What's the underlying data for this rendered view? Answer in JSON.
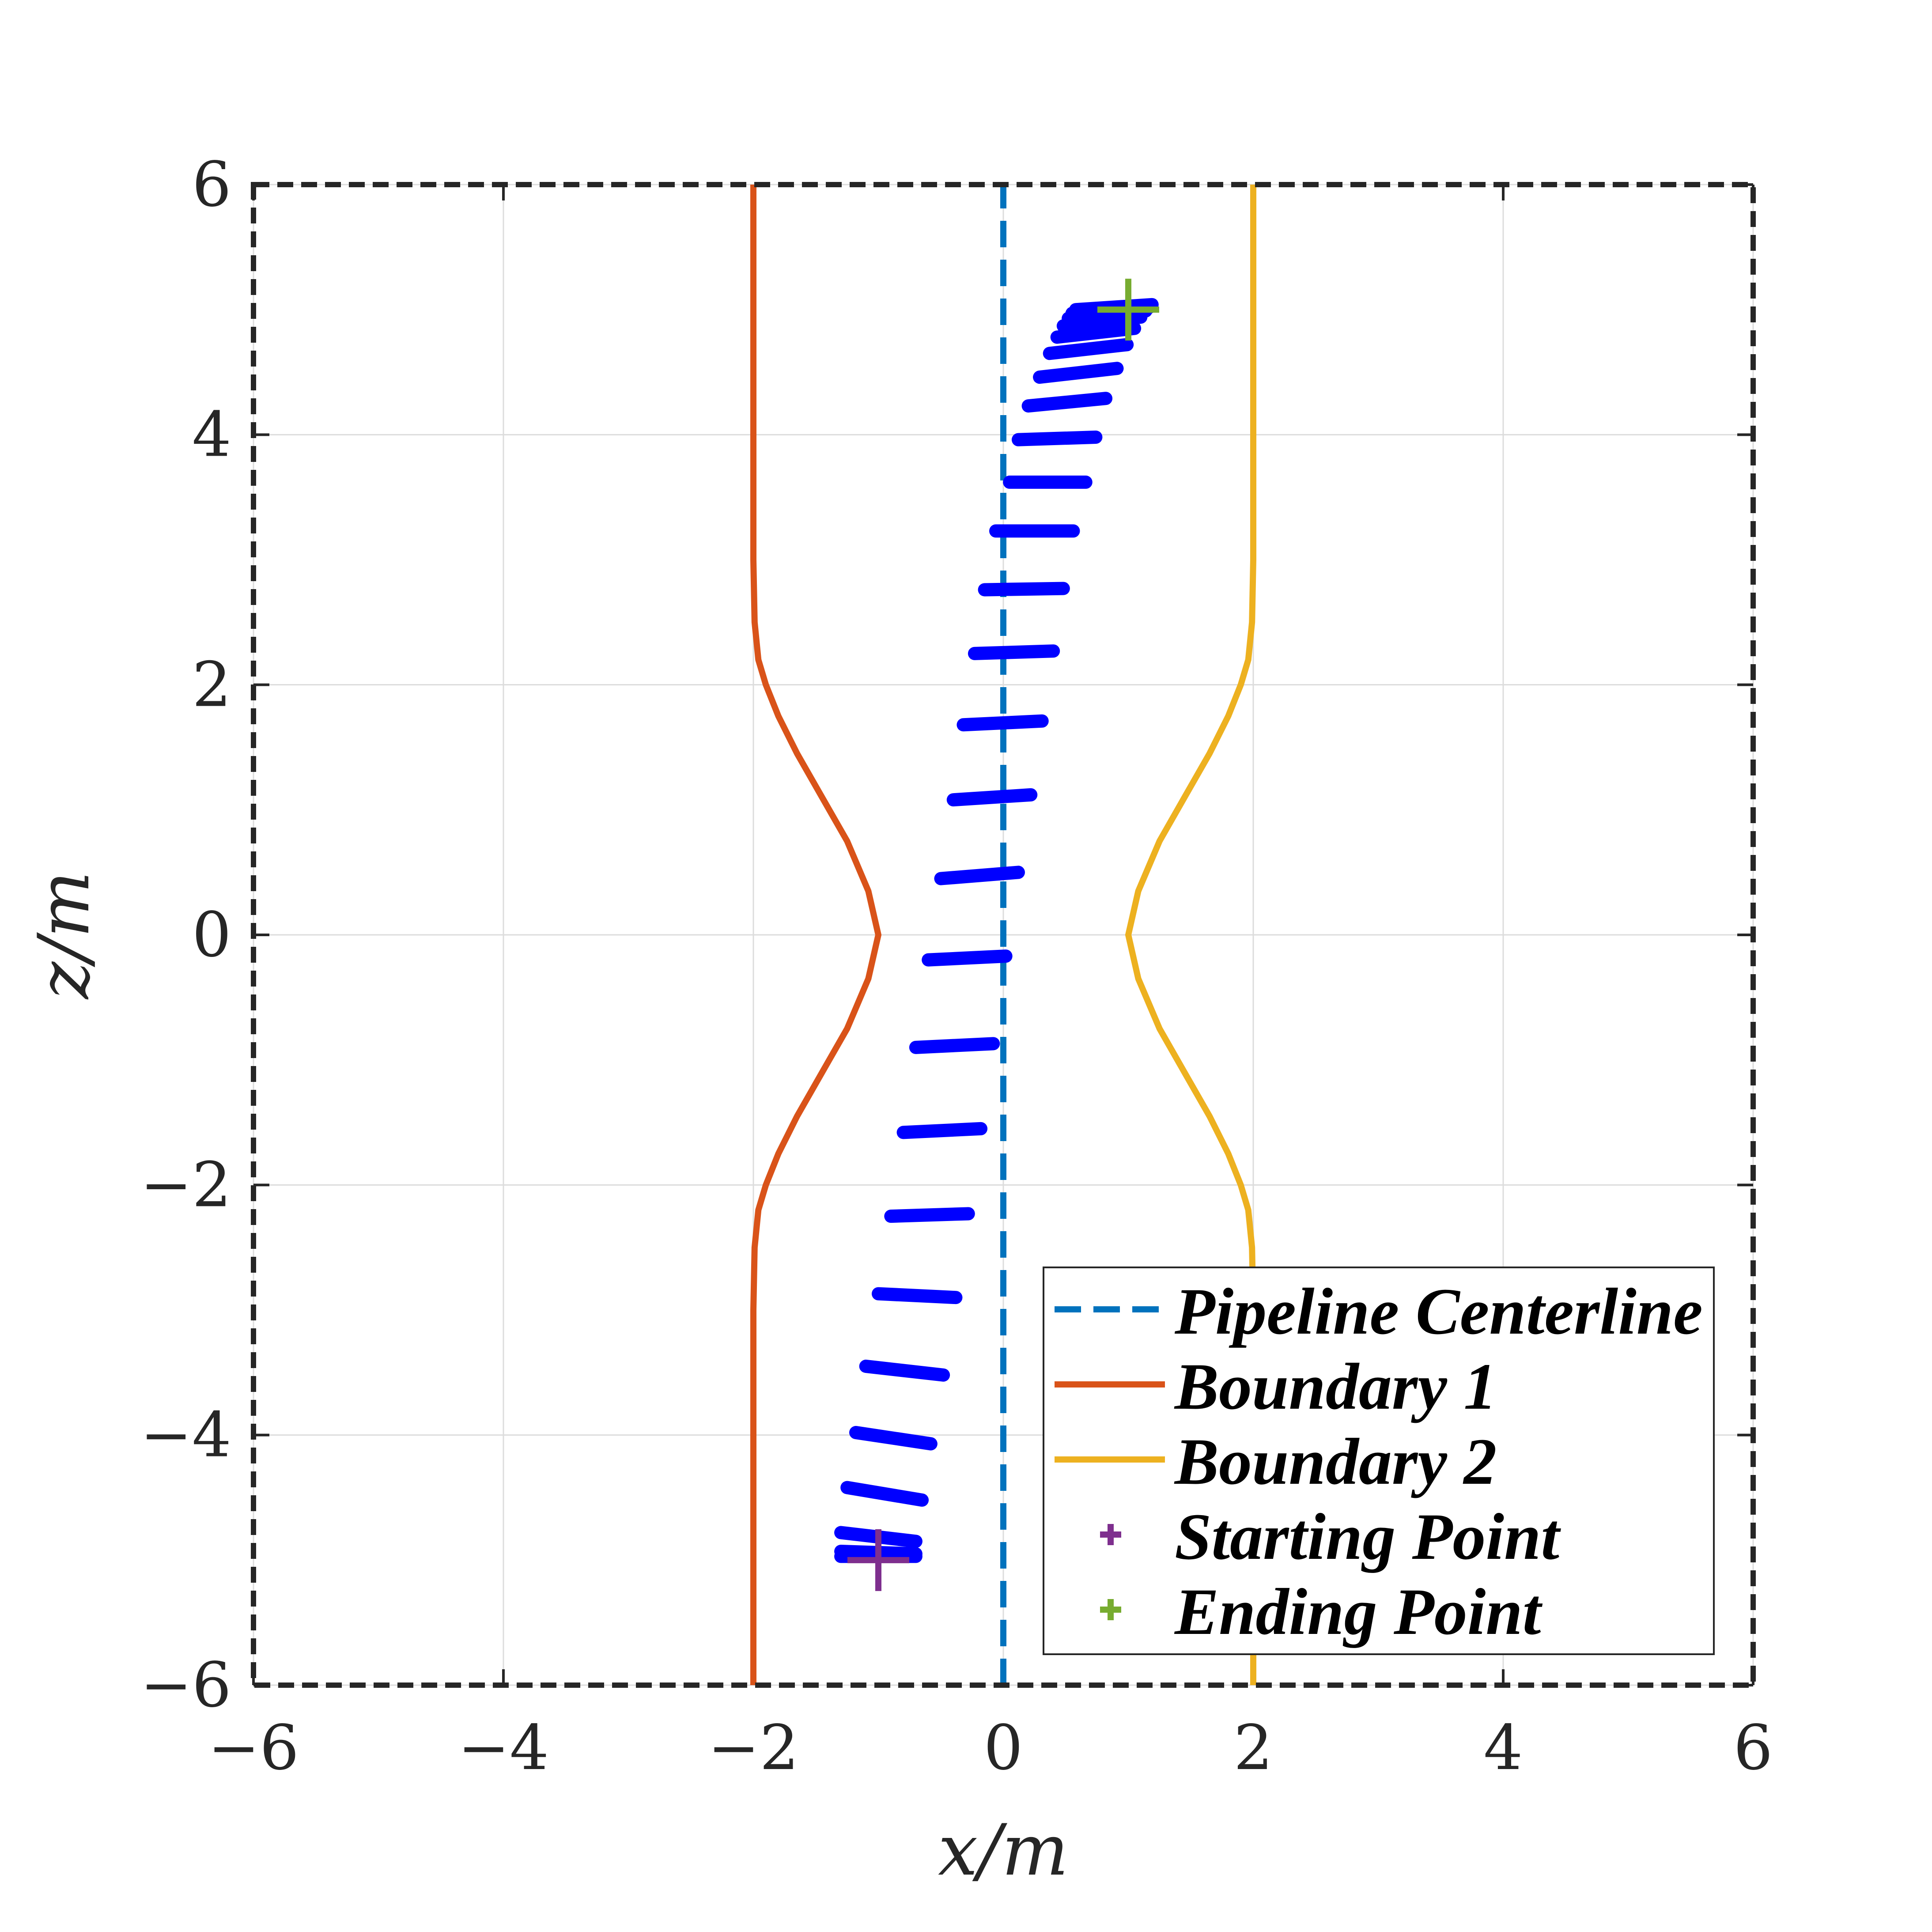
{
  "chart_data": {
    "type": "line",
    "xlabel": "x/m",
    "ylabel": "z/m",
    "xlim": [
      -6,
      6
    ],
    "ylim": [
      -6,
      6
    ],
    "xticks": [
      -6,
      -4,
      -2,
      0,
      2,
      4,
      6
    ],
    "yticks": [
      -6,
      -4,
      -2,
      0,
      2,
      4,
      6
    ],
    "xtick_labels": [
      "−6",
      "−4",
      "−2",
      "0",
      "2",
      "4",
      "6"
    ],
    "ytick_labels": [
      "−6",
      "−4",
      "−2",
      "0",
      "2",
      "4",
      "6"
    ],
    "grid": true,
    "legend_placement": "bottom-right",
    "series": [
      {
        "name": "Pipeline Centerline",
        "style": "dashed",
        "color": "#0072BD",
        "x": [
          0,
          0
        ],
        "z": [
          -6,
          6
        ]
      },
      {
        "name": "Boundary 1",
        "style": "solid",
        "color": "#D95319",
        "x": [
          -2.0,
          -2.0,
          -1.99,
          -1.96,
          -1.9,
          -1.8,
          -1.65,
          -1.45,
          -1.25,
          -1.08,
          -1.0,
          -1.08,
          -1.25,
          -1.45,
          -1.65,
          -1.8,
          -1.9,
          -1.96,
          -1.99,
          -2.0,
          -2.0
        ],
        "z": [
          -6,
          -3.0,
          -2.5,
          -2.2,
          -2.0,
          -1.75,
          -1.45,
          -1.1,
          -0.75,
          -0.35,
          0,
          0.35,
          0.75,
          1.1,
          1.45,
          1.75,
          2.0,
          2.2,
          2.5,
          3.0,
          6
        ]
      },
      {
        "name": "Boundary 2",
        "style": "solid",
        "color": "#EDB120",
        "x": [
          2.0,
          2.0,
          1.99,
          1.96,
          1.9,
          1.8,
          1.65,
          1.45,
          1.25,
          1.08,
          1.0,
          1.08,
          1.25,
          1.45,
          1.65,
          1.8,
          1.9,
          1.96,
          1.99,
          2.0,
          2.0
        ],
        "z": [
          -6,
          -3.0,
          -2.5,
          -2.2,
          -2.0,
          -1.75,
          -1.45,
          -1.1,
          -0.75,
          -0.35,
          0,
          0.35,
          0.75,
          1.1,
          1.45,
          1.75,
          2.0,
          2.2,
          2.5,
          3.0,
          6
        ]
      },
      {
        "name": "Starting Point",
        "style": "marker-plus",
        "color": "#7E2F8E",
        "x": [
          -1
        ],
        "z": [
          -5
        ]
      },
      {
        "name": "Ending Point",
        "style": "marker-plus",
        "color": "#77AC30",
        "x": [
          1
        ],
        "z": [
          5
        ]
      }
    ],
    "trajectory_segments": {
      "color": "#0000FF",
      "segments": [
        {
          "x1": -1.3,
          "z1": -4.97,
          "x2": -0.7,
          "z2": -4.97
        },
        {
          "x1": -1.3,
          "z1": -4.93,
          "x2": -0.7,
          "z2": -4.95
        },
        {
          "x1": -1.3,
          "z1": -4.78,
          "x2": -0.7,
          "z2": -4.85
        },
        {
          "x1": -1.25,
          "z1": -4.42,
          "x2": -0.65,
          "z2": -4.52
        },
        {
          "x1": -1.18,
          "z1": -3.98,
          "x2": -0.58,
          "z2": -4.07
        },
        {
          "x1": -1.1,
          "z1": -3.45,
          "x2": -0.48,
          "z2": -3.52
        },
        {
          "x1": -1.0,
          "z1": -2.87,
          "x2": -0.38,
          "z2": -2.9
        },
        {
          "x1": -0.9,
          "z1": -2.25,
          "x2": -0.28,
          "z2": -2.23
        },
        {
          "x1": -0.8,
          "z1": -1.58,
          "x2": -0.18,
          "z2": -1.55
        },
        {
          "x1": -0.7,
          "z1": -0.9,
          "x2": -0.08,
          "z2": -0.87
        },
        {
          "x1": -0.6,
          "z1": -0.2,
          "x2": 0.02,
          "z2": -0.17
        },
        {
          "x1": -0.5,
          "z1": 0.45,
          "x2": 0.12,
          "z2": 0.5
        },
        {
          "x1": -0.4,
          "z1": 1.08,
          "x2": 0.22,
          "z2": 1.12
        },
        {
          "x1": -0.32,
          "z1": 1.68,
          "x2": 0.31,
          "z2": 1.71
        },
        {
          "x1": -0.23,
          "z1": 2.25,
          "x2": 0.4,
          "z2": 2.27
        },
        {
          "x1": -0.15,
          "z1": 2.76,
          "x2": 0.48,
          "z2": 2.77
        },
        {
          "x1": -0.06,
          "z1": 3.23,
          "x2": 0.56,
          "z2": 3.23
        },
        {
          "x1": 0.05,
          "z1": 3.62,
          "x2": 0.66,
          "z2": 3.62
        },
        {
          "x1": 0.12,
          "z1": 3.96,
          "x2": 0.74,
          "z2": 3.98
        },
        {
          "x1": 0.2,
          "z1": 4.23,
          "x2": 0.82,
          "z2": 4.29
        },
        {
          "x1": 0.29,
          "z1": 4.46,
          "x2": 0.91,
          "z2": 4.53
        },
        {
          "x1": 0.37,
          "z1": 4.65,
          "x2": 0.99,
          "z2": 4.72
        },
        {
          "x1": 0.43,
          "z1": 4.78,
          "x2": 1.05,
          "z2": 4.85
        },
        {
          "x1": 0.48,
          "z1": 4.87,
          "x2": 1.1,
          "z2": 4.94
        },
        {
          "x1": 0.52,
          "z1": 4.93,
          "x2": 1.14,
          "z2": 4.99
        },
        {
          "x1": 0.55,
          "z1": 4.97,
          "x2": 1.17,
          "z2": 5.02
        },
        {
          "x1": 0.58,
          "z1": 5.0,
          "x2": 1.19,
          "z2": 5.04
        }
      ]
    }
  },
  "legend": {
    "items": [
      {
        "label": "Pipeline Centerline",
        "style": "dashed",
        "color": "#0072BD"
      },
      {
        "label": "Boundary 1",
        "style": "solid",
        "color": "#D95319"
      },
      {
        "label": "Boundary 2",
        "style": "solid",
        "color": "#EDB120"
      },
      {
        "label": "Starting Point",
        "style": "marker-plus",
        "color": "#7E2F8E"
      },
      {
        "label": "Ending Point",
        "style": "marker-plus",
        "color": "#77AC30"
      }
    ]
  }
}
